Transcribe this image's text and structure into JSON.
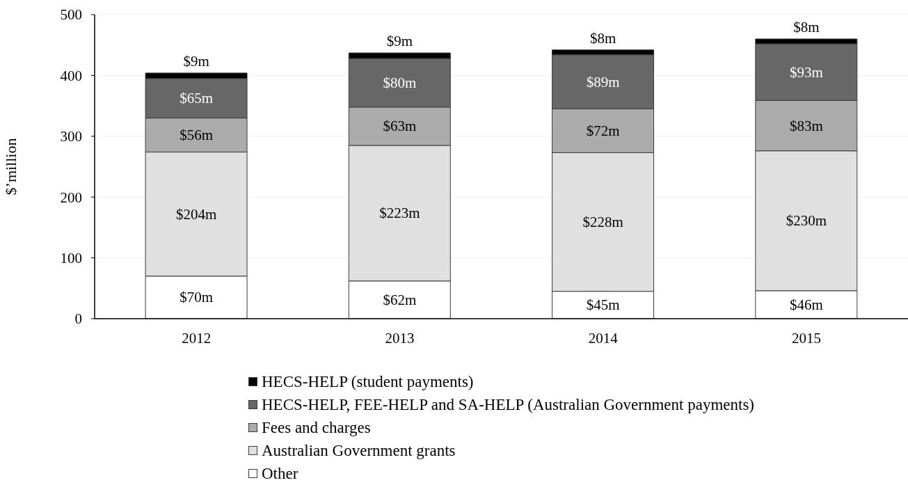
{
  "chart_data": {
    "type": "bar",
    "stacked": true,
    "ylabel": "$’million",
    "categories": [
      "2012",
      "2013",
      "2014",
      "2015"
    ],
    "ylim": [
      0,
      500
    ],
    "yticks": [
      0,
      100,
      200,
      300,
      400,
      500
    ],
    "grid": "y",
    "legend": "bottom",
    "series": [
      {
        "name": "Other",
        "color": "#ffffff",
        "values": [
          70,
          62,
          45,
          46
        ],
        "value_labels": [
          "$70m",
          "$62m",
          "$45m",
          "$46m"
        ]
      },
      {
        "name": "Australian Government grants",
        "color": "#e0e0e0",
        "values": [
          204,
          223,
          228,
          230
        ],
        "value_labels": [
          "$204m",
          "$223m",
          "$228m",
          "$230m"
        ]
      },
      {
        "name": "Fees and charges",
        "color": "#ababab",
        "values": [
          56,
          63,
          72,
          83
        ],
        "value_labels": [
          "$56m",
          "$63m",
          "$72m",
          "$83m"
        ]
      },
      {
        "name": "HECS-HELP, FEE-HELP and SA-HELP (Australian Government payments)",
        "color": "#676767",
        "values": [
          65,
          80,
          89,
          93
        ],
        "value_labels": [
          "$65m",
          "$80m",
          "$89m",
          "$93m"
        ]
      },
      {
        "name": "HECS-HELP (student payments)",
        "color": "#000000",
        "values": [
          9,
          9,
          8,
          8
        ],
        "value_labels": [
          "$9m",
          "$9m",
          "$8m",
          "$8m"
        ]
      }
    ]
  }
}
